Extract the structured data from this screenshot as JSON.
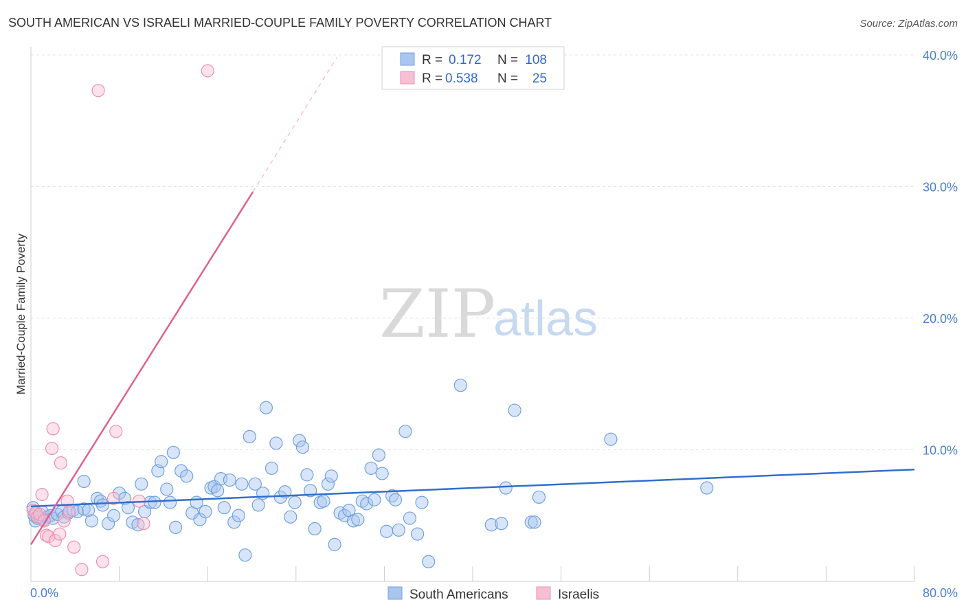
{
  "chart_data": {
    "type": "scatter",
    "title": "SOUTH AMERICAN VS ISRAELI MARRIED-COUPLE FAMILY POVERTY CORRELATION CHART",
    "source": "Source: ZipAtlas.com",
    "xlabel": "",
    "ylabel": "Married-Couple Family Poverty",
    "xlim": [
      0,
      80
    ],
    "ylim": [
      0,
      40
    ],
    "x_tick_labels": [
      "0.0%",
      "80.0%"
    ],
    "y_tick_labels": [
      "10.0%",
      "20.0%",
      "30.0%",
      "40.0%"
    ],
    "y_ticks": [
      10,
      20,
      30,
      40
    ],
    "watermark": {
      "zip": "ZIP",
      "atlas": "atlas"
    },
    "legend": {
      "rows": [
        {
          "r_label": "R =",
          "r_value": "0.172",
          "n_label": "N =",
          "n_value": "108"
        },
        {
          "r_label": "R =",
          "r_value": "0.538",
          "n_label": "N =",
          "n_value": "25"
        }
      ]
    },
    "series": [
      {
        "name": "South Americans",
        "color": "#6fa0e0",
        "fill": "#a9c6ef",
        "line_color": "#2f6fcf",
        "trend": {
          "x": [
            0,
            80
          ],
          "y": [
            5.7,
            8.5
          ]
        },
        "points": [
          [
            0.2,
            5.6
          ],
          [
            0.3,
            5.0
          ],
          [
            0.4,
            4.6
          ],
          [
            0.5,
            5.2
          ],
          [
            0.6,
            4.8
          ],
          [
            0.8,
            4.9
          ],
          [
            1.0,
            5.3
          ],
          [
            1.2,
            4.7
          ],
          [
            1.5,
            4.9
          ],
          [
            1.8,
            5.0
          ],
          [
            2.0,
            4.8
          ],
          [
            2.4,
            5.1
          ],
          [
            2.8,
            5.3
          ],
          [
            3.0,
            4.9
          ],
          [
            3.4,
            5.2
          ],
          [
            3.8,
            5.4
          ],
          [
            4.2,
            5.3
          ],
          [
            4.8,
            5.5
          ],
          [
            5.2,
            5.4
          ],
          [
            5.5,
            4.6
          ],
          [
            4.8,
            7.6
          ],
          [
            6.0,
            6.3
          ],
          [
            6.3,
            6.1
          ],
          [
            6.5,
            5.8
          ],
          [
            7.0,
            4.4
          ],
          [
            7.5,
            5.0
          ],
          [
            8.0,
            6.7
          ],
          [
            8.5,
            6.3
          ],
          [
            8.8,
            5.6
          ],
          [
            9.2,
            4.5
          ],
          [
            9.7,
            4.3
          ],
          [
            10.0,
            7.4
          ],
          [
            10.3,
            5.3
          ],
          [
            10.8,
            6.0
          ],
          [
            11.2,
            6.0
          ],
          [
            11.5,
            8.4
          ],
          [
            11.8,
            9.1
          ],
          [
            12.3,
            7.0
          ],
          [
            12.6,
            6.0
          ],
          [
            12.9,
            9.8
          ],
          [
            13.1,
            4.1
          ],
          [
            13.6,
            8.4
          ],
          [
            14.1,
            8.0
          ],
          [
            14.6,
            5.2
          ],
          [
            15.0,
            6.0
          ],
          [
            15.3,
            4.7
          ],
          [
            15.8,
            5.3
          ],
          [
            16.3,
            7.1
          ],
          [
            16.6,
            7.2
          ],
          [
            16.9,
            6.9
          ],
          [
            17.2,
            7.8
          ],
          [
            17.5,
            5.6
          ],
          [
            18.0,
            7.7
          ],
          [
            18.4,
            4.5
          ],
          [
            18.8,
            5.0
          ],
          [
            19.1,
            7.4
          ],
          [
            19.4,
            2.0
          ],
          [
            19.8,
            11.0
          ],
          [
            20.3,
            7.4
          ],
          [
            20.6,
            5.8
          ],
          [
            21.0,
            6.7
          ],
          [
            21.3,
            13.2
          ],
          [
            21.8,
            8.6
          ],
          [
            22.2,
            10.5
          ],
          [
            22.6,
            6.4
          ],
          [
            23.0,
            6.8
          ],
          [
            23.5,
            4.9
          ],
          [
            23.9,
            6.0
          ],
          [
            24.3,
            10.7
          ],
          [
            24.6,
            10.2
          ],
          [
            25.0,
            8.1
          ],
          [
            25.3,
            6.9
          ],
          [
            25.7,
            4.0
          ],
          [
            26.2,
            6.0
          ],
          [
            26.5,
            6.1
          ],
          [
            26.9,
            7.4
          ],
          [
            27.2,
            8.0
          ],
          [
            27.5,
            2.8
          ],
          [
            28.0,
            5.2
          ],
          [
            28.4,
            5.0
          ],
          [
            28.8,
            5.4
          ],
          [
            29.2,
            4.6
          ],
          [
            29.6,
            4.7
          ],
          [
            30.0,
            6.1
          ],
          [
            30.4,
            5.9
          ],
          [
            30.8,
            8.6
          ],
          [
            31.1,
            6.2
          ],
          [
            31.5,
            9.6
          ],
          [
            31.8,
            8.2
          ],
          [
            32.2,
            3.8
          ],
          [
            32.7,
            6.5
          ],
          [
            33.0,
            6.2
          ],
          [
            33.3,
            3.9
          ],
          [
            33.9,
            11.4
          ],
          [
            34.3,
            4.8
          ],
          [
            35.0,
            3.6
          ],
          [
            35.4,
            6.0
          ],
          [
            36.0,
            1.5
          ],
          [
            41.7,
            4.3
          ],
          [
            42.6,
            4.4
          ],
          [
            38.9,
            14.9
          ],
          [
            43.0,
            7.1
          ],
          [
            43.8,
            13.0
          ],
          [
            45.3,
            4.5
          ],
          [
            45.6,
            4.5
          ],
          [
            46.0,
            6.4
          ],
          [
            52.5,
            10.8
          ],
          [
            61.2,
            7.1
          ]
        ]
      },
      {
        "name": "Israelis",
        "color": "#ee8fb0",
        "fill": "#f7bfd3",
        "line_color": "#e0608e",
        "trend": {
          "x": [
            0,
            20.1
          ],
          "y": [
            2.8,
            29.6
          ]
        },
        "trend_dashed": {
          "x": [
            20.1,
            27.7
          ],
          "y": [
            29.6,
            39.8
          ]
        },
        "points": [
          [
            0.2,
            5.4
          ],
          [
            0.4,
            5.2
          ],
          [
            0.6,
            4.9
          ],
          [
            0.8,
            5.1
          ],
          [
            1.0,
            6.6
          ],
          [
            1.2,
            4.6
          ],
          [
            1.4,
            3.5
          ],
          [
            1.6,
            3.4
          ],
          [
            1.9,
            10.1
          ],
          [
            2.0,
            11.6
          ],
          [
            2.2,
            3.1
          ],
          [
            2.6,
            3.6
          ],
          [
            2.7,
            9.0
          ],
          [
            3.0,
            4.6
          ],
          [
            3.3,
            6.1
          ],
          [
            3.5,
            5.3
          ],
          [
            3.9,
            2.6
          ],
          [
            4.6,
            0.9
          ],
          [
            6.1,
            37.3
          ],
          [
            6.5,
            1.5
          ],
          [
            7.5,
            6.3
          ],
          [
            7.7,
            11.4
          ],
          [
            9.8,
            6.1
          ],
          [
            10.2,
            4.4
          ],
          [
            16.0,
            38.8
          ]
        ]
      }
    ]
  }
}
